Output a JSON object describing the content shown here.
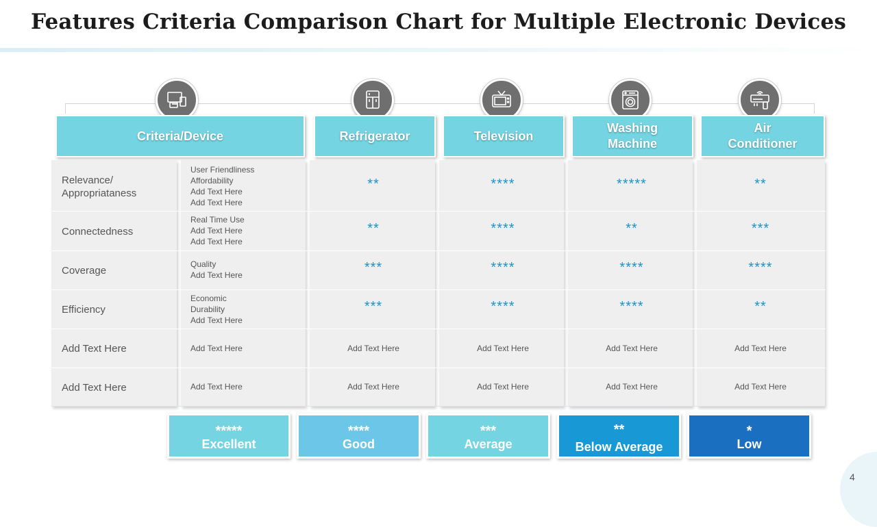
{
  "title": "Features Criteria Comparison Chart for Multiple Electronic Devices",
  "icons": [
    "devices-icon",
    "refrigerator-icon",
    "television-icon",
    "washing-machine-icon",
    "air-conditioner-icon"
  ],
  "headers": [
    "Criteria/Device",
    "Refrigerator",
    "Television",
    "Washing\nMachine",
    "Air\nConditioner"
  ],
  "rows": [
    {
      "criterion": "Relevance/\nAppropriataness",
      "details": "User Friendliness\nAffordability\nAdd Text Here\nAdd Text Here",
      "values": [
        "**",
        "****",
        "*****",
        "**"
      ]
    },
    {
      "criterion": "Connectedness",
      "details": "Real Time Use\nAdd Text Here\nAdd Text Here",
      "values": [
        "**",
        "****",
        "**",
        "***"
      ]
    },
    {
      "criterion": "Coverage",
      "details": "Quality\nAdd Text Here",
      "values": [
        "***",
        "****",
        "****",
        "****"
      ]
    },
    {
      "criterion": "Efficiency",
      "details": "Economic\nDurability\nAdd Text Here",
      "values": [
        "***",
        "****",
        "****",
        "**"
      ]
    },
    {
      "criterion": "Add Text Here",
      "details": "Add Text Here",
      "values": [
        "Add Text Here",
        "Add Text Here",
        "Add Text Here",
        "Add Text Here"
      ]
    },
    {
      "criterion": "Add Text Here",
      "details": "Add Text Here",
      "values": [
        "Add Text Here",
        "Add Text Here",
        "Add Text Here",
        "Add Text Here"
      ]
    }
  ],
  "legend": [
    {
      "stars": "*****",
      "label": "Excellent",
      "color": "#74d4e2"
    },
    {
      "stars": "****",
      "label": "Good",
      "color": "#6cc6e8"
    },
    {
      "stars": "***",
      "label": "Average",
      "color": "#74d4e2"
    },
    {
      "stars": "**",
      "label": "Below Average",
      "color": "#1998d6"
    },
    {
      "stars": "*",
      "label": "Low",
      "color": "#1b6fc1"
    }
  ],
  "colors": {
    "header": "#74d4e2",
    "star": "#1c92c8",
    "panel": "#efefef"
  },
  "page_number": "4"
}
